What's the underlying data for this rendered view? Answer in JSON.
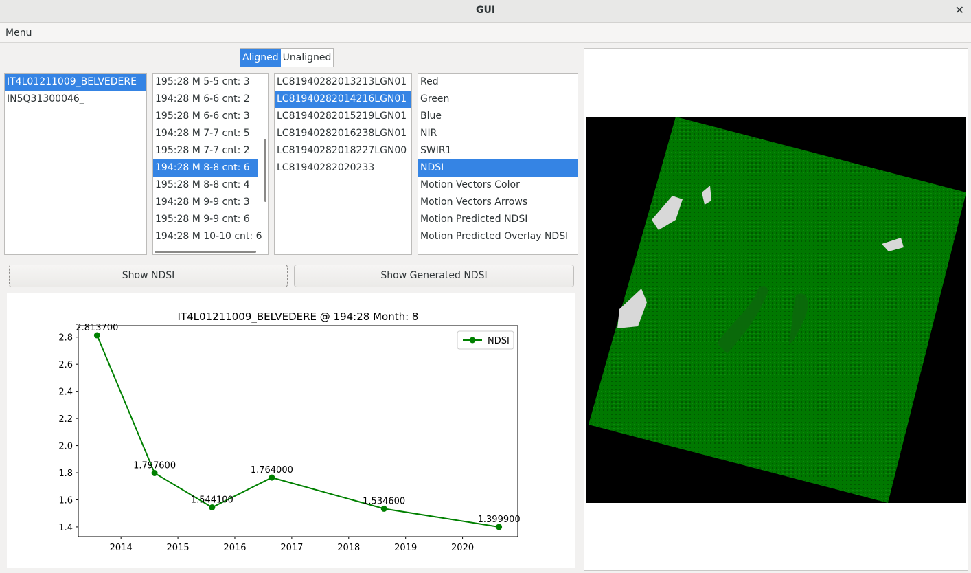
{
  "window": {
    "title": "GUI",
    "close_glyph": "✕"
  },
  "menubar": {
    "menu_label": "Menu"
  },
  "mode_toggle": {
    "aligned_label": "Aligned",
    "unaligned_label": "Unaligned",
    "selected": "Aligned"
  },
  "sites": [
    {
      "label": "IT4L01211009_BELVEDERE",
      "selected": true
    },
    {
      "label": "IN5Q31300046_",
      "selected": false
    }
  ],
  "tiles": [
    {
      "label": "195:28 M 5-5 cnt: 3",
      "selected": false
    },
    {
      "label": "194:28 M 6-6 cnt: 2",
      "selected": false
    },
    {
      "label": "195:28 M 6-6 cnt: 3",
      "selected": false
    },
    {
      "label": "194:28 M 7-7 cnt: 5",
      "selected": false
    },
    {
      "label": "195:28 M 7-7 cnt: 2",
      "selected": false
    },
    {
      "label": "194:28 M 8-8 cnt: 6",
      "selected": true
    },
    {
      "label": "195:28 M 8-8 cnt: 4",
      "selected": false
    },
    {
      "label": "194:28 M 9-9 cnt: 3",
      "selected": false
    },
    {
      "label": "195:28 M 9-9 cnt: 6",
      "selected": false
    },
    {
      "label": "194:28 M 10-10 cnt: 6",
      "selected": false
    }
  ],
  "scenes": [
    {
      "label": "LC81940282013213LGN01",
      "selected": false
    },
    {
      "label": "LC81940282014216LGN01",
      "selected": true
    },
    {
      "label": "LC81940282015219LGN01",
      "selected": false
    },
    {
      "label": "LC81940282016238LGN01",
      "selected": false
    },
    {
      "label": "LC81940282018227LGN00",
      "selected": false
    },
    {
      "label": "LC81940282020233",
      "selected": false
    }
  ],
  "bands": [
    {
      "label": "Red",
      "selected": false
    },
    {
      "label": "Green",
      "selected": false
    },
    {
      "label": "Blue",
      "selected": false
    },
    {
      "label": "NIR",
      "selected": false
    },
    {
      "label": "SWIR1",
      "selected": false
    },
    {
      "label": "NDSI",
      "selected": true
    },
    {
      "label": "Motion Vectors Color",
      "selected": false
    },
    {
      "label": "Motion Vectors Arrows",
      "selected": false
    },
    {
      "label": "Motion Predicted NDSI",
      "selected": false
    },
    {
      "label": "Motion Predicted Overlay NDSI",
      "selected": false
    }
  ],
  "buttons": {
    "show_ndsi": "Show NDSI",
    "show_generated_ndsi": "Show Generated NDSI"
  },
  "chart_data": {
    "type": "line",
    "title": "IT4L01211009_BELVEDERE @ 194:28 Month: 8",
    "xlabel": "",
    "ylabel": "",
    "x": [
      2013.58,
      2014.59,
      2015.6,
      2016.65,
      2018.62,
      2020.64
    ],
    "series": [
      {
        "name": "NDSI",
        "values": [
          2.8137,
          1.7976,
          1.5441,
          1.764,
          1.5346,
          1.3999
        ],
        "color": "#008000",
        "marker": "circle"
      }
    ],
    "point_labels": [
      "2.813700",
      "1.797600",
      "1.544100",
      "1.764000",
      "1.534600",
      "1.399900"
    ],
    "xticks": [
      "2014",
      "2015",
      "2016",
      "2017",
      "2018",
      "2019",
      "2020"
    ],
    "yticks": [
      "1.4",
      "1.6",
      "1.8",
      "2.0",
      "2.2",
      "2.4",
      "2.6",
      "2.8"
    ],
    "xlim": [
      2013.25,
      2020.97
    ],
    "ylim": [
      1.3287,
      2.8849
    ],
    "legend": "top-right",
    "grid": false
  },
  "image_view": {
    "description": "NDSI",
    "land_color": "#007800",
    "background_color": "#000000"
  }
}
